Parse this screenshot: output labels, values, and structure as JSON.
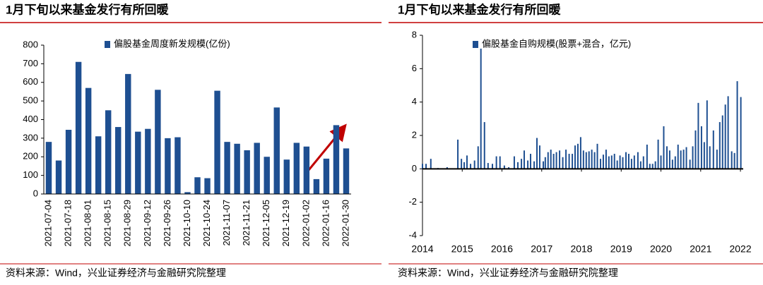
{
  "chart_data": [
    {
      "type": "bar",
      "title": "1月下旬以来基金发行有所回暖",
      "source": "资料来源：Wind，兴业证券经济与金融研究院整理",
      "color": "#1e4f91",
      "series": [
        {
          "name": "偏股基金周度新发规模(亿份)",
          "color": "#1e4f91",
          "values": [
            280,
            180,
            345,
            710,
            570,
            310,
            450,
            360,
            645,
            335,
            350,
            560,
            300,
            305,
            10,
            90,
            85,
            555,
            280,
            270,
            235,
            275,
            200,
            465,
            185,
            275,
            255,
            80,
            190,
            370,
            245
          ]
        }
      ],
      "categories": [
        "2021-07-04",
        null,
        "2021-07-18",
        null,
        "2021-08-01",
        null,
        "2021-08-15",
        null,
        "2021-08-29",
        null,
        "2021-09-12",
        null,
        "2021-09-26",
        null,
        "2021-10-10",
        null,
        "2021-10-24",
        null,
        "2021-11-07",
        null,
        "2021-11-21",
        null,
        "2021-12-05",
        null,
        "2021-12-19",
        null,
        "2022-01-02",
        null,
        "2022-01-16",
        null,
        "2022-01-30"
      ],
      "ylim": [
        0,
        800
      ],
      "yticks": [
        0,
        100,
        200,
        300,
        400,
        500,
        600,
        700,
        800
      ]
    },
    {
      "type": "bar",
      "title": "1月下旬以来基金发行有所回暖",
      "source": "资料来源：Wind，兴业证券经济与金融研究院整理",
      "series": [
        {
          "name": "偏股基金自购规模(股票+混合，亿元)",
          "color": "#1e4f91",
          "x": [
            2014.0,
            2014.09,
            2014.21,
            2014.39,
            2014.62,
            2014.89,
            2014.98,
            2015.05,
            2015.12,
            2015.21,
            2015.31,
            2015.4,
            2015.47,
            2015.56,
            2015.65,
            2015.76,
            2015.86,
            2015.95,
            2016.06,
            2016.17,
            2016.31,
            2016.4,
            2016.49,
            2016.56,
            2016.65,
            2016.72,
            2016.81,
            2016.88,
            2016.95,
            2017.04,
            2017.09,
            2017.16,
            2017.23,
            2017.3,
            2017.37,
            2017.45,
            2017.53,
            2017.61,
            2017.69,
            2017.77,
            2017.84,
            2017.91,
            2017.98,
            2018.05,
            2018.12,
            2018.19,
            2018.26,
            2018.33,
            2018.4,
            2018.48,
            2018.55,
            2018.62,
            2018.69,
            2018.76,
            2018.83,
            2018.9,
            2018.97,
            2019.04,
            2019.12,
            2019.19,
            2019.26,
            2019.33,
            2019.42,
            2019.49,
            2019.56,
            2019.65,
            2019.72,
            2019.79,
            2019.86,
            2019.93,
            2020.0,
            2020.07,
            2020.15,
            2020.22,
            2020.29,
            2020.36,
            2020.43,
            2020.5,
            2020.57,
            2020.64,
            2020.73,
            2020.8,
            2020.87,
            2020.94,
            2021.02,
            2021.09,
            2021.16,
            2021.23,
            2021.32,
            2021.41,
            2021.48,
            2021.55,
            2021.62,
            2021.69,
            2021.78,
            2021.85,
            2021.92,
            2022.01
          ],
          "values": [
            0.3,
            0.3,
            0.6,
            0.05,
            0.1,
            1.75,
            0.6,
            0.4,
            0.8,
            0.3,
            0.5,
            1.35,
            7.2,
            2.8,
            0.35,
            0.3,
            0.75,
            0.75,
            0.2,
            0.1,
            0.75,
            0.4,
            0.6,
            1.1,
            0.5,
            0.9,
            0.45,
            1.85,
            1.4,
            0.45,
            0.7,
            1.0,
            1.15,
            0.9,
            1.0,
            1.1,
            0.7,
            1.15,
            0.9,
            0.9,
            1.4,
            1.5,
            1.9,
            1.1,
            1.0,
            1.05,
            1.15,
            1.0,
            1.5,
            0.6,
            0.85,
            1.15,
            0.75,
            0.8,
            0.9,
            0.5,
            0.8,
            0.7,
            1.0,
            0.9,
            0.6,
            0.8,
            1.0,
            0.45,
            0.75,
            1.45,
            0.3,
            0.3,
            0.45,
            1.75,
            0.8,
            2.55,
            1.35,
            1.1,
            0.55,
            0.75,
            1.45,
            1.1,
            1.15,
            1.3,
            0.55,
            1.35,
            2.3,
            3.95,
            2.55,
            1.6,
            4.1,
            1.35,
            2.3,
            1.15,
            2.8,
            3.2,
            3.85,
            4.35,
            1.05,
            0.95,
            5.25,
            4.3
          ]
        }
      ],
      "xlim": [
        2014,
        2022.07
      ],
      "xticks": [
        2014,
        2015,
        2016,
        2017,
        2018,
        2019,
        2020,
        2021,
        2022
      ],
      "ylim": [
        -4,
        8
      ],
      "yticks": [
        -4,
        -2,
        0,
        2,
        4,
        6,
        8
      ]
    }
  ]
}
